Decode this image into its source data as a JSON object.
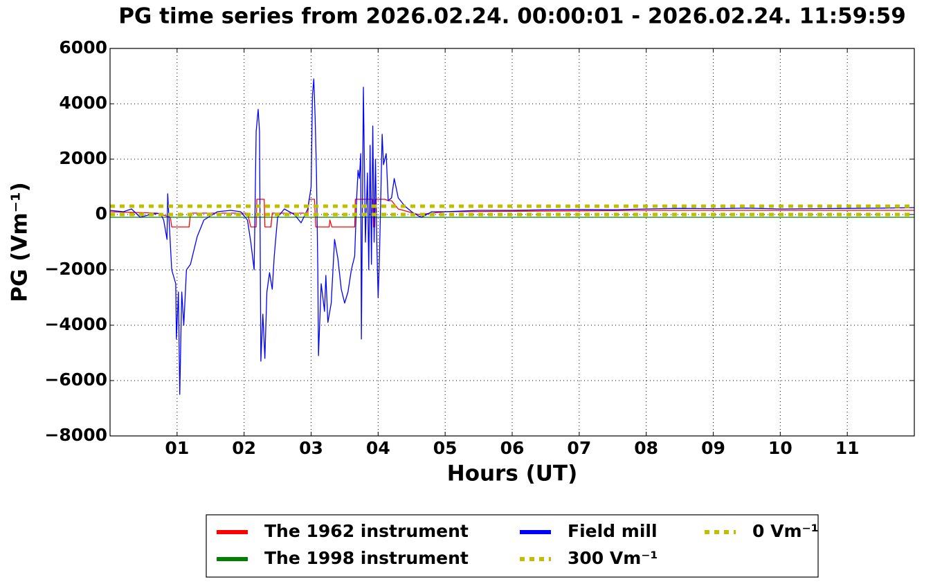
{
  "chart_data": {
    "type": "line",
    "title": "PG time series from 2026.02.24. 00:00:01 - 2026.02.24. 11:59:59",
    "x_label": "Hours (UT)",
    "y_label": "PG (Vm⁻¹)",
    "xlim": [
      0,
      12
    ],
    "ylim": [
      -8000,
      6000
    ],
    "xticks": [
      {
        "value": 1,
        "label": "01"
      },
      {
        "value": 2,
        "label": "02"
      },
      {
        "value": 3,
        "label": "03"
      },
      {
        "value": 4,
        "label": "04"
      },
      {
        "value": 5,
        "label": "05"
      },
      {
        "value": 6,
        "label": "06"
      },
      {
        "value": 7,
        "label": "07"
      },
      {
        "value": 8,
        "label": "08"
      },
      {
        "value": 9,
        "label": "09"
      },
      {
        "value": 10,
        "label": "10"
      },
      {
        "value": 11,
        "label": "11"
      }
    ],
    "yticks": [
      {
        "value": -8000,
        "label": "−8000"
      },
      {
        "value": -6000,
        "label": "−6000"
      },
      {
        "value": -4000,
        "label": "−4000"
      },
      {
        "value": -2000,
        "label": "−2000"
      },
      0,
      2000,
      4000,
      6000
    ],
    "grid": true,
    "legend_position": "below",
    "series": [
      {
        "name": "The 1962 instrument",
        "color": "#ff0000",
        "linestyle": "solid",
        "x": [
          0,
          0.7,
          0.9,
          0.92,
          1.18,
          1.2,
          2.05,
          2.1,
          2.18,
          2.19,
          2.3,
          2.31,
          2.4,
          2.42,
          2.95,
          2.97,
          3.05,
          3.07,
          3.27,
          3.28,
          3.31,
          3.65,
          3.66,
          3.92,
          3.93,
          3.95,
          3.96,
          4.1,
          4.15,
          4.2,
          4.3,
          4.6,
          5,
          8,
          12
        ],
        "values": [
          100,
          50,
          -100,
          -450,
          -450,
          50,
          50,
          -450,
          -450,
          550,
          550,
          -450,
          -450,
          50,
          50,
          550,
          550,
          -450,
          -450,
          -200,
          -450,
          -450,
          550,
          550,
          -450,
          -450,
          550,
          550,
          500,
          500,
          200,
          0,
          100,
          150,
          150
        ]
      },
      {
        "name": "The 1998 instrument",
        "color": "#008000",
        "linestyle": "solid",
        "x": [
          0,
          12
        ],
        "values": [
          -100,
          -100
        ]
      },
      {
        "name": "Field mill",
        "color": "#0000ff",
        "linestyle": "solid",
        "x": [
          0,
          0.2,
          0.32,
          0.45,
          0.6,
          0.75,
          0.8,
          0.85,
          0.86,
          0.92,
          0.98,
          0.99,
          1.02,
          1.04,
          1.07,
          1.1,
          1.14,
          1.2,
          1.3,
          1.4,
          1.6,
          1.8,
          1.95,
          2.05,
          2.1,
          2.15,
          2.18,
          2.21,
          2.23,
          2.24,
          2.25,
          2.28,
          2.31,
          2.34,
          2.38,
          2.42,
          2.45,
          2.5,
          2.6,
          2.75,
          2.85,
          2.95,
          3.0,
          3.02,
          3.04,
          3.06,
          3.08,
          3.1,
          3.11,
          3.15,
          3.2,
          3.22,
          3.25,
          3.3,
          3.35,
          3.4,
          3.45,
          3.5,
          3.55,
          3.6,
          3.65,
          3.68,
          3.7,
          3.72,
          3.74,
          3.75,
          3.78,
          3.81,
          3.84,
          3.86,
          3.88,
          3.9,
          3.92,
          3.94,
          3.96,
          3.98,
          4.0,
          4.02,
          4.06,
          4.08,
          4.12,
          4.15,
          4.2,
          4.24,
          4.3,
          4.4,
          4.5,
          4.6,
          4.65,
          4.8,
          5,
          5.5,
          6,
          6.5,
          7,
          7.5,
          8,
          8.5,
          9,
          9.5,
          10,
          10.5,
          11,
          11.5,
          12
        ],
        "values": [
          150,
          100,
          200,
          -100,
          0,
          50,
          -200,
          -900,
          750,
          -2000,
          -2500,
          -4500,
          -2800,
          -6500,
          -2800,
          -4000,
          -2000,
          -1800,
          -800,
          -200,
          100,
          150,
          100,
          -200,
          -1000,
          -2000,
          3000,
          3800,
          3000,
          -1000,
          -5300,
          -3600,
          -5200,
          -2800,
          -2100,
          -2700,
          -1500,
          -100,
          200,
          0,
          -300,
          200,
          1000,
          4300,
          4900,
          3500,
          1500,
          -2000,
          -5100,
          -2500,
          -3500,
          -2200,
          -3900,
          -3200,
          -900,
          -1600,
          -2700,
          -3200,
          -2800,
          -2000,
          -1500,
          600,
          1600,
          1300,
          2200,
          -4500,
          4600,
          -1000,
          1500,
          -2000,
          2500,
          -1800,
          3200,
          -1000,
          2000,
          -1000,
          -3000,
          -1500,
          2900,
          1800,
          2200,
          500,
          600,
          1300,
          600,
          300,
          100,
          -50,
          -100,
          100,
          100,
          150,
          150,
          170,
          180,
          170,
          200,
          220,
          210,
          230,
          200,
          210,
          220,
          230,
          250
        ]
      },
      {
        "name": "300 Vm⁻¹",
        "color": "#bfbf00",
        "linestyle": "dotted",
        "x": [
          0,
          12
        ],
        "values": [
          300,
          300
        ]
      },
      {
        "name": "0 Vm⁻¹",
        "color": "#bfbf00",
        "linestyle": "dotted",
        "x": [
          0,
          12
        ],
        "values": [
          0,
          0
        ]
      }
    ]
  }
}
